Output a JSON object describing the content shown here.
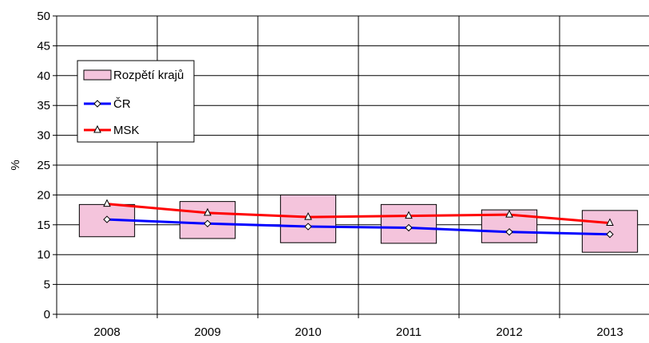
{
  "chart_data": {
    "type": "line",
    "ylabel": "%",
    "xlabel": "",
    "title": "",
    "ylim": [
      0,
      50
    ],
    "yticks": [
      "0",
      "5",
      "10",
      "15",
      "20",
      "25",
      "30",
      "35",
      "40",
      "45",
      "50"
    ],
    "categories": [
      "2008",
      "2009",
      "2010",
      "2011",
      "2012",
      "2013"
    ],
    "grid": true,
    "legend_position": "upper-left",
    "range": {
      "name": "Rozpětí krajů",
      "low": [
        13.0,
        12.7,
        12.0,
        11.9,
        12.0,
        10.4
      ],
      "high": [
        18.4,
        18.9,
        20.0,
        18.4,
        17.5,
        17.4
      ],
      "color": "#f4c4dc"
    },
    "series": [
      {
        "name": "ČR",
        "values": [
          15.9,
          15.2,
          14.7,
          14.5,
          13.8,
          13.4
        ],
        "color": "#0000ff",
        "marker": "diamond"
      },
      {
        "name": "MSK",
        "values": [
          18.5,
          17.0,
          16.3,
          16.5,
          16.7,
          15.3
        ],
        "color": "#ff0000",
        "marker": "triangle"
      }
    ]
  }
}
